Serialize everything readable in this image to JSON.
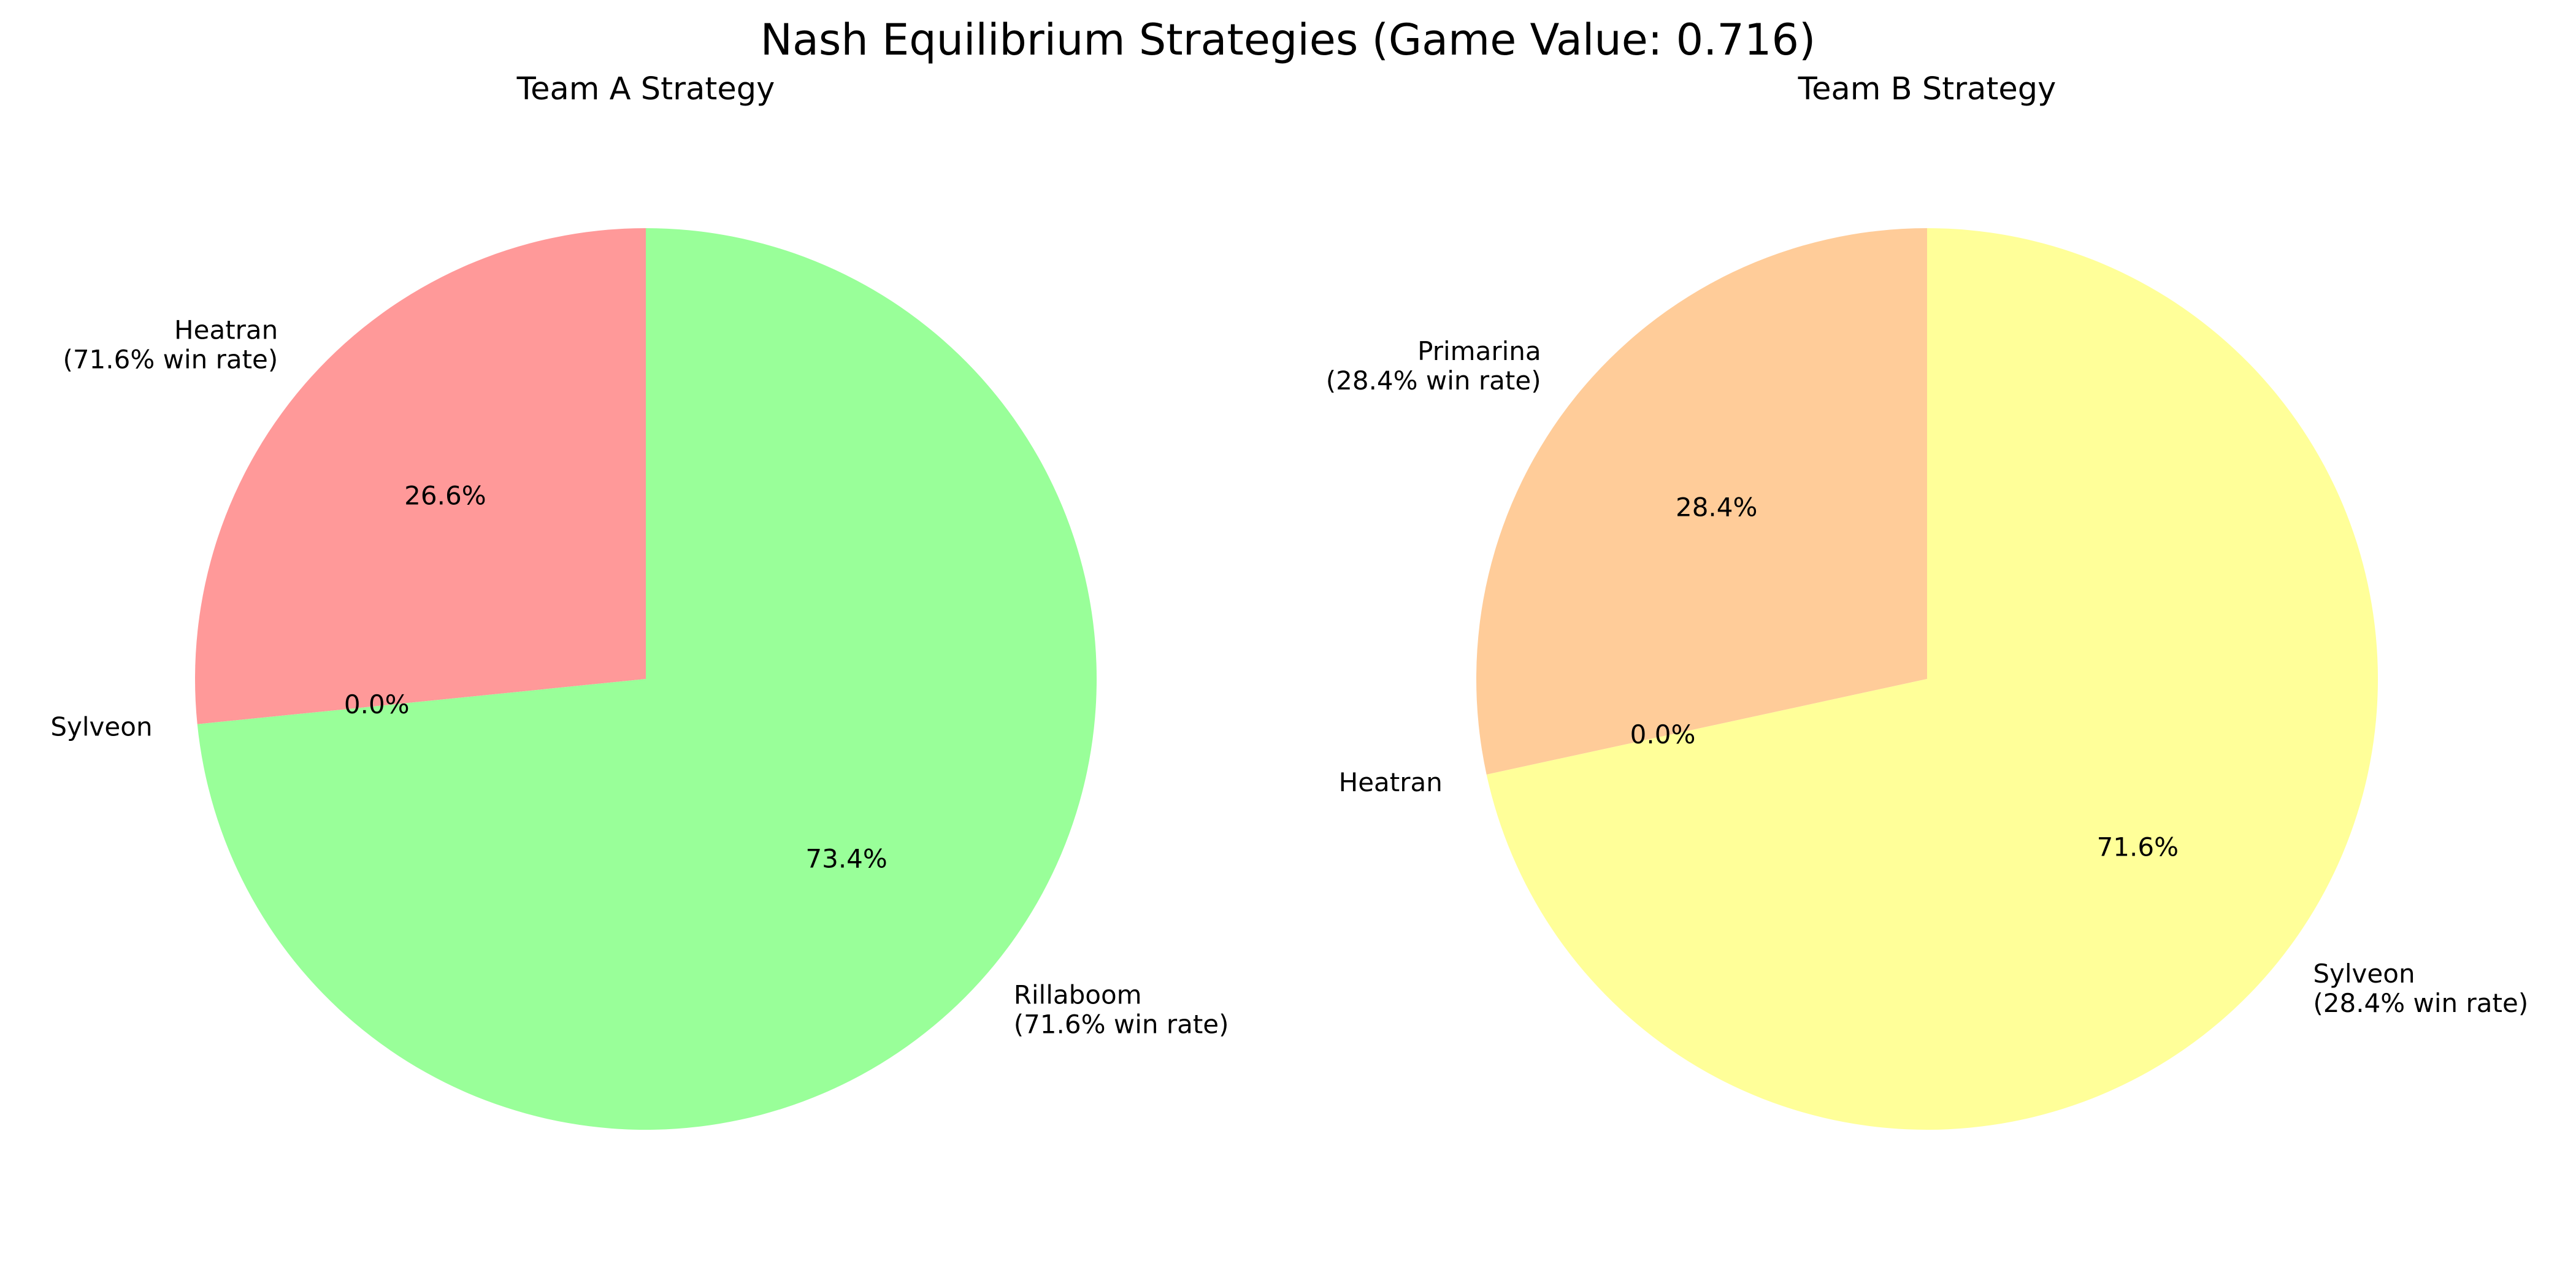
{
  "figure_title": "Nash Equilibrium Strategies (Game Value: 0.716)",
  "chart_data": [
    {
      "type": "pie",
      "title": "Team A Strategy",
      "start_angle_deg": 90,
      "direction": "counterclockwise",
      "slices": [
        {
          "name": "Heatran",
          "label_lines": [
            "Heatran",
            "(71.6% win rate)"
          ],
          "value": 26.6,
          "pct_label": "26.6%",
          "color": "#ff9999"
        },
        {
          "name": "Sylveon",
          "label_lines": [
            "Sylveon"
          ],
          "value": 0.0,
          "pct_label": "0.0%",
          "color": "#66b3ff"
        },
        {
          "name": "Rillaboom",
          "label_lines": [
            "Rillaboom",
            "(71.6% win rate)"
          ],
          "value": 73.4,
          "pct_label": "73.4%",
          "color": "#99ff99"
        }
      ]
    },
    {
      "type": "pie",
      "title": "Team B Strategy",
      "start_angle_deg": 90,
      "direction": "counterclockwise",
      "slices": [
        {
          "name": "Primarina",
          "label_lines": [
            "Primarina",
            "(28.4% win rate)"
          ],
          "value": 28.4,
          "pct_label": "28.4%",
          "color": "#ffcc99"
        },
        {
          "name": "Heatran",
          "label_lines": [
            "Heatran"
          ],
          "value": 0.0,
          "pct_label": "0.0%",
          "color": "#ff99cc"
        },
        {
          "name": "Sylveon",
          "label_lines": [
            "Sylveon",
            "(28.4% win rate)"
          ],
          "value": 71.6,
          "pct_label": "71.6%",
          "color": "#ffff99"
        }
      ]
    }
  ]
}
